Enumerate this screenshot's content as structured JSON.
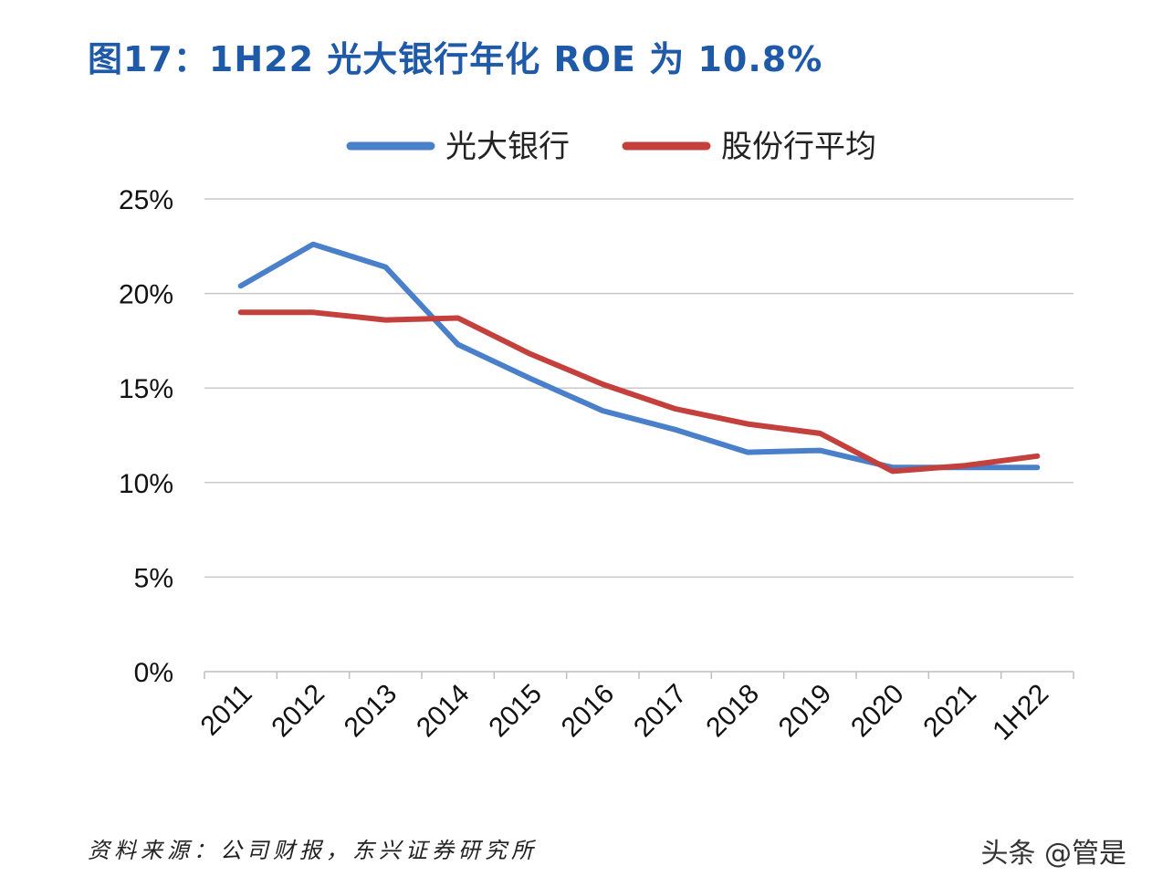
{
  "page": {
    "title": "图17：1H22 光大银行年化 ROE 为 10.8%",
    "source": "资料来源：公司财报，东兴证券研究所",
    "watermark": "头条 @管是"
  },
  "chart_data": {
    "type": "line",
    "title": "图17：1H22 光大银行年化 ROE 为 10.8%",
    "xlabel": "",
    "ylabel": "",
    "categories": [
      "2011",
      "2012",
      "2013",
      "2014",
      "2015",
      "2016",
      "2017",
      "2018",
      "2019",
      "2020",
      "2021",
      "1H22"
    ],
    "ylim": [
      0,
      25
    ],
    "yticks": [
      0,
      5,
      10,
      15,
      20,
      25
    ],
    "ytick_labels": [
      "0%",
      "5%",
      "10%",
      "15%",
      "20%",
      "25%"
    ],
    "grid": true,
    "legend_position": "top",
    "series": [
      {
        "name": "光大银行",
        "color": "#4a7fc9",
        "values": [
          20.4,
          22.6,
          21.4,
          17.3,
          15.5,
          13.8,
          12.8,
          11.6,
          11.7,
          10.8,
          10.8,
          10.8
        ]
      },
      {
        "name": "股份行平均",
        "color": "#c4403d",
        "values": [
          19.0,
          19.0,
          18.6,
          18.7,
          16.8,
          15.2,
          13.9,
          13.1,
          12.6,
          10.6,
          10.9,
          11.4
        ]
      }
    ]
  }
}
